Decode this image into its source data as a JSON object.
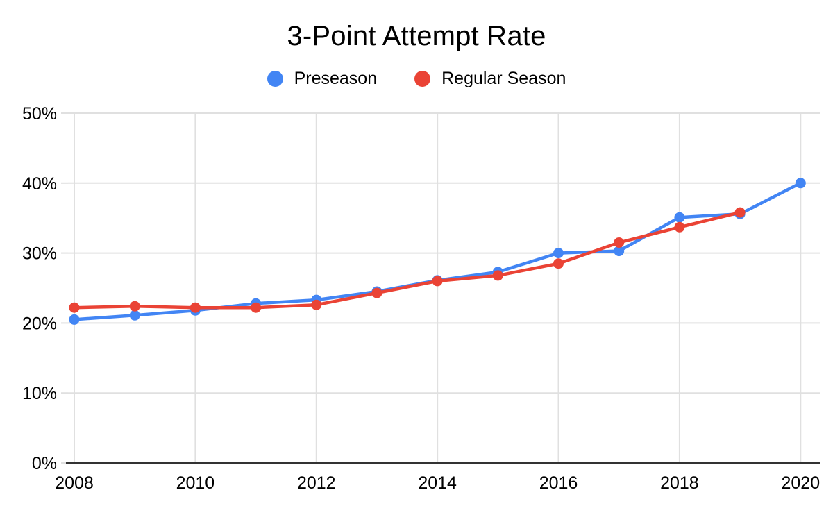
{
  "title": "3-Point Attempt Rate",
  "colors": {
    "background": "#ffffff",
    "grid": "#e0e0e0",
    "axis": "#333333",
    "label_text": "#000000",
    "preseason_blue": "#4285f4",
    "regular_season_red": "#ea4335"
  },
  "chart_data": {
    "type": "line",
    "title": "3-Point Attempt Rate",
    "xlabel": "",
    "ylabel": "",
    "x": [
      2008,
      2009,
      2010,
      2011,
      2012,
      2013,
      2014,
      2015,
      2016,
      2017,
      2018,
      2019,
      2020
    ],
    "x_tick_labels": [
      "2008",
      "2010",
      "2012",
      "2014",
      "2016",
      "2018",
      "2020"
    ],
    "ylim": [
      0,
      50
    ],
    "y_ticks": [
      0,
      10,
      20,
      30,
      40,
      50
    ],
    "y_tick_labels": [
      "0%",
      "10%",
      "20%",
      "30%",
      "40%",
      "50%"
    ],
    "grid": true,
    "legend_position": "top",
    "series": [
      {
        "name": "Preseason",
        "color": "#4285f4",
        "values": [
          20.5,
          21.1,
          21.8,
          22.8,
          23.3,
          24.5,
          26.1,
          27.3,
          30.0,
          30.3,
          35.1,
          35.6,
          40.0
        ]
      },
      {
        "name": "Regular Season",
        "color": "#ea4335",
        "values": [
          22.2,
          22.4,
          22.2,
          22.2,
          22.6,
          24.3,
          26.0,
          26.8,
          28.5,
          31.5,
          33.7,
          35.8,
          null
        ]
      }
    ]
  }
}
